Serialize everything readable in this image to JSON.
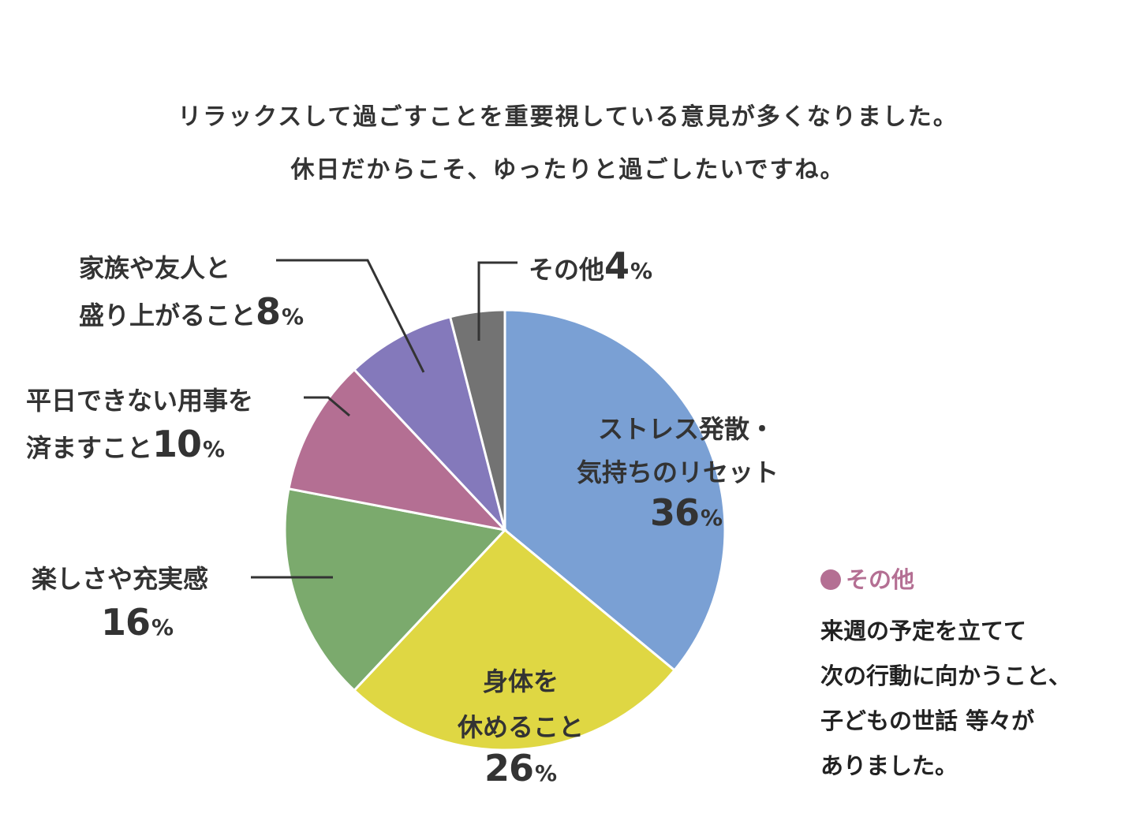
{
  "header": {
    "line1": "リラックスして過ごすことを重要視している意見が多くなりました。",
    "line2": "休日だからこそ、ゆったりと過ごしたいですね。"
  },
  "chart_data": {
    "type": "pie",
    "slices": [
      {
        "label": "ストレス発散・気持ちのリセット",
        "lines": [
          "ストレス発散・",
          "気持ちのリセット"
        ],
        "value": 36,
        "color": "#7aa0d4"
      },
      {
        "label": "身体を休めること",
        "lines": [
          "身体を",
          "休めること"
        ],
        "value": 26,
        "color": "#dfd743"
      },
      {
        "label": "楽しさや充実感",
        "lines": [
          "楽しさや充実感"
        ],
        "value": 16,
        "color": "#7baa6d"
      },
      {
        "label": "平日できない用事を済ますこと",
        "lines": [
          "平日できない用事を",
          "済ますこと"
        ],
        "value": 10,
        "color": "#b46f93"
      },
      {
        "label": "家族や友人と盛り上がること",
        "lines": [
          "家族や友人と",
          "盛り上がること"
        ],
        "value": 8,
        "color": "#8479bb"
      },
      {
        "label": "その他",
        "lines": [
          "その他"
        ],
        "value": 4,
        "color": "#737373"
      }
    ],
    "unit": "%"
  },
  "note": {
    "title": "その他",
    "lines": [
      "来週の予定を立てて",
      "次の行動に向かうこと、",
      "子どもの世話 等々が",
      "ありました。"
    ]
  }
}
